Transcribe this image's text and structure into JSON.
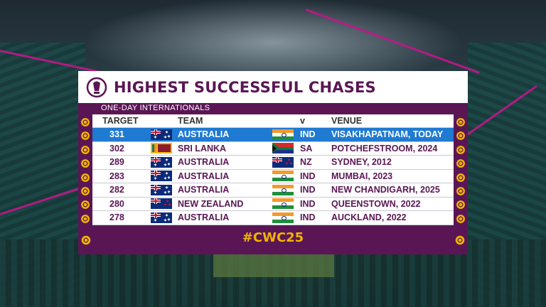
{
  "board": {
    "title": "HIGHEST SUCCESSFUL CHASES",
    "subtitle": "ONE-DAY INTERNATIONALS",
    "hashtag": "#CWC25",
    "colors": {
      "board": "#5a1654",
      "highlight": "#1f7ad1",
      "accent": "#f3b400"
    }
  },
  "table": {
    "headers": {
      "target": "TARGET",
      "team": "TEAM",
      "vs": "v",
      "venue": "VENUE"
    },
    "rows": [
      {
        "target": "331",
        "team": "AUSTRALIA",
        "team_flag": "australia-flag",
        "opp": "IND",
        "opp_flag": "india-flag",
        "venue": "VISAKHAPATNAM, TODAY",
        "highlighted": true
      },
      {
        "target": "302",
        "team": "SRI LANKA",
        "team_flag": "sri-lanka-flag",
        "opp": "SA",
        "opp_flag": "south-africa-flag",
        "venue": "POTCHEFSTROOM, 2024"
      },
      {
        "target": "289",
        "team": "AUSTRALIA",
        "team_flag": "australia-flag",
        "opp": "NZ",
        "opp_flag": "new-zealand-flag",
        "venue": "SYDNEY, 2012"
      },
      {
        "target": "283",
        "team": "AUSTRALIA",
        "team_flag": "australia-flag",
        "opp": "IND",
        "opp_flag": "india-flag",
        "venue": "MUMBAI, 2023"
      },
      {
        "target": "282",
        "team": "AUSTRALIA",
        "team_flag": "australia-flag",
        "opp": "IND",
        "opp_flag": "india-flag",
        "venue": "NEW CHANDIGARH, 2025"
      },
      {
        "target": "280",
        "team": "NEW ZEALAND",
        "team_flag": "new-zealand-flag",
        "opp": "IND",
        "opp_flag": "india-flag",
        "venue": "QUEENSTOWN, 2022"
      },
      {
        "target": "278",
        "team": "AUSTRALIA",
        "team_flag": "australia-flag",
        "opp": "IND",
        "opp_flag": "india-flag",
        "venue": "AUCKLAND, 2022"
      }
    ]
  }
}
